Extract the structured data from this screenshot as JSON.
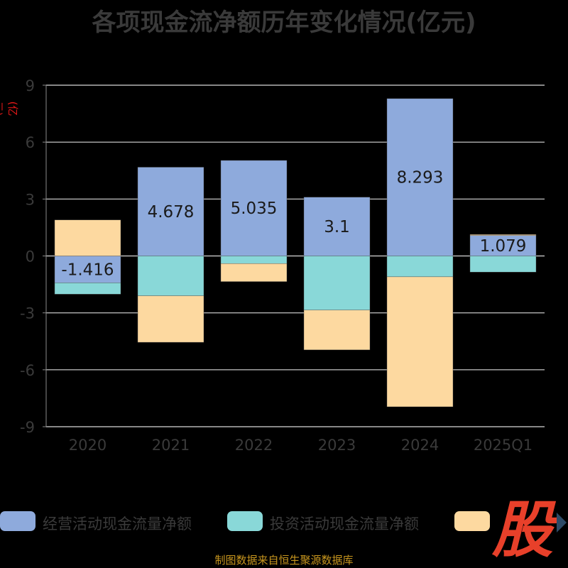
{
  "chart_data": {
    "type": "bar",
    "stacked": true,
    "title": "各项现金流净额历年变化情况(亿元)",
    "ylabel": "(亿元)",
    "categories": [
      "2020",
      "2021",
      "2022",
      "2023",
      "2024",
      "2025Q1"
    ],
    "ylim": [
      -9,
      9
    ],
    "yticks": [
      9,
      6,
      3,
      0,
      -3,
      -6,
      -9
    ],
    "grid": true,
    "legend_position": "bottom",
    "series": [
      {
        "name": "经营活动现金流量净额",
        "color": "#8eaadc",
        "values": [
          -1.416,
          4.678,
          5.035,
          3.1,
          8.293,
          1.079
        ],
        "data_labels": [
          "-1.416",
          "4.678",
          "5.035",
          "3.1",
          "8.293",
          "1.079"
        ]
      },
      {
        "name": "投资活动现金流量净额",
        "color": "#89d8d8",
        "values": [
          -0.6,
          -2.1,
          -0.4,
          -2.85,
          -1.1,
          -0.85
        ]
      },
      {
        "name": "",
        "color": "#fdd9a0",
        "values": [
          1.9,
          -2.45,
          -0.95,
          -2.1,
          -6.85,
          0.05
        ]
      }
    ]
  },
  "source": "制图数据来自恒生聚源数据库",
  "logo_text": "股",
  "colors": {
    "background": "#000000",
    "title": "#3a3a3a",
    "axis_text": "#3a3a3a",
    "grid": "#d8d8d8",
    "ylabel": "#e01818",
    "source": "#c8961e",
    "logo": "#e8402a"
  }
}
